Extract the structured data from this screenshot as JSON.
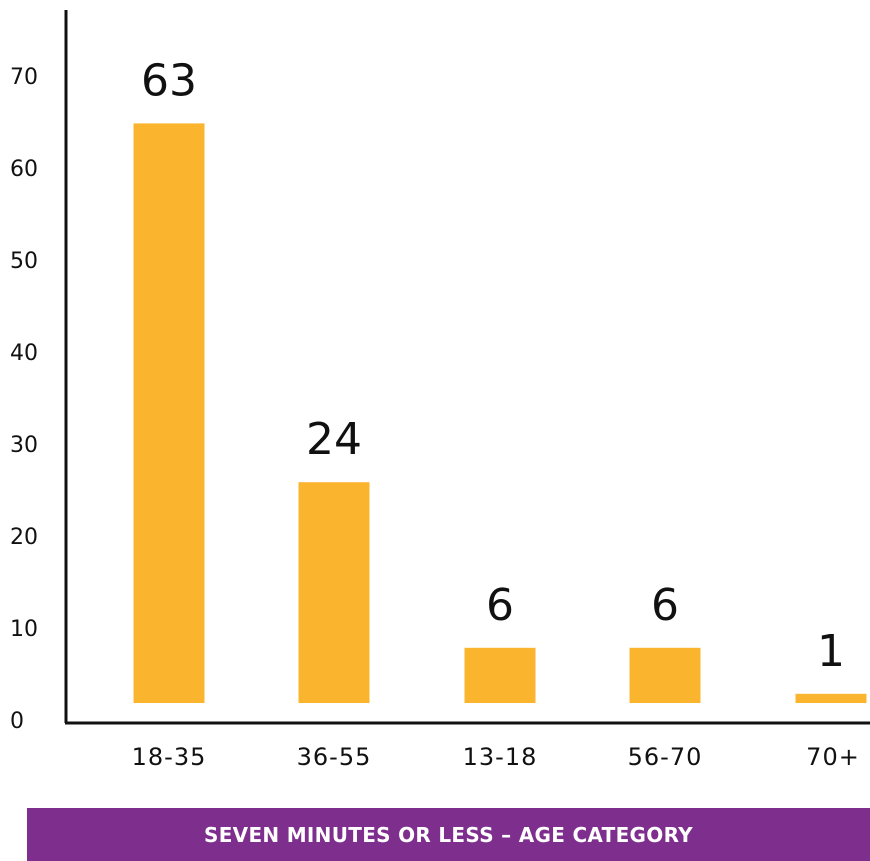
{
  "colors": {
    "bar": "#FBB42E",
    "axis": "#111111",
    "banner": "#7E2F8E"
  },
  "banner": {
    "title": "SEVEN MINUTES OR LESS – AGE CATEGORY"
  },
  "chart_data": {
    "type": "bar",
    "categories": [
      "18-35",
      "36-55",
      "13-18",
      "56-70",
      "70+"
    ],
    "values": [
      63,
      24,
      6,
      6,
      1
    ],
    "data_labels": [
      "63",
      "24",
      "6",
      "6",
      "1"
    ],
    "yticks": [
      "0",
      "10",
      "20",
      "30",
      "40",
      "50",
      "60",
      "70"
    ],
    "ylim": [
      0,
      75
    ],
    "grid": false,
    "legend": "none",
    "title": "SEVEN MINUTES OR LESS – AGE CATEGORY",
    "xlabel": "",
    "ylabel": ""
  }
}
